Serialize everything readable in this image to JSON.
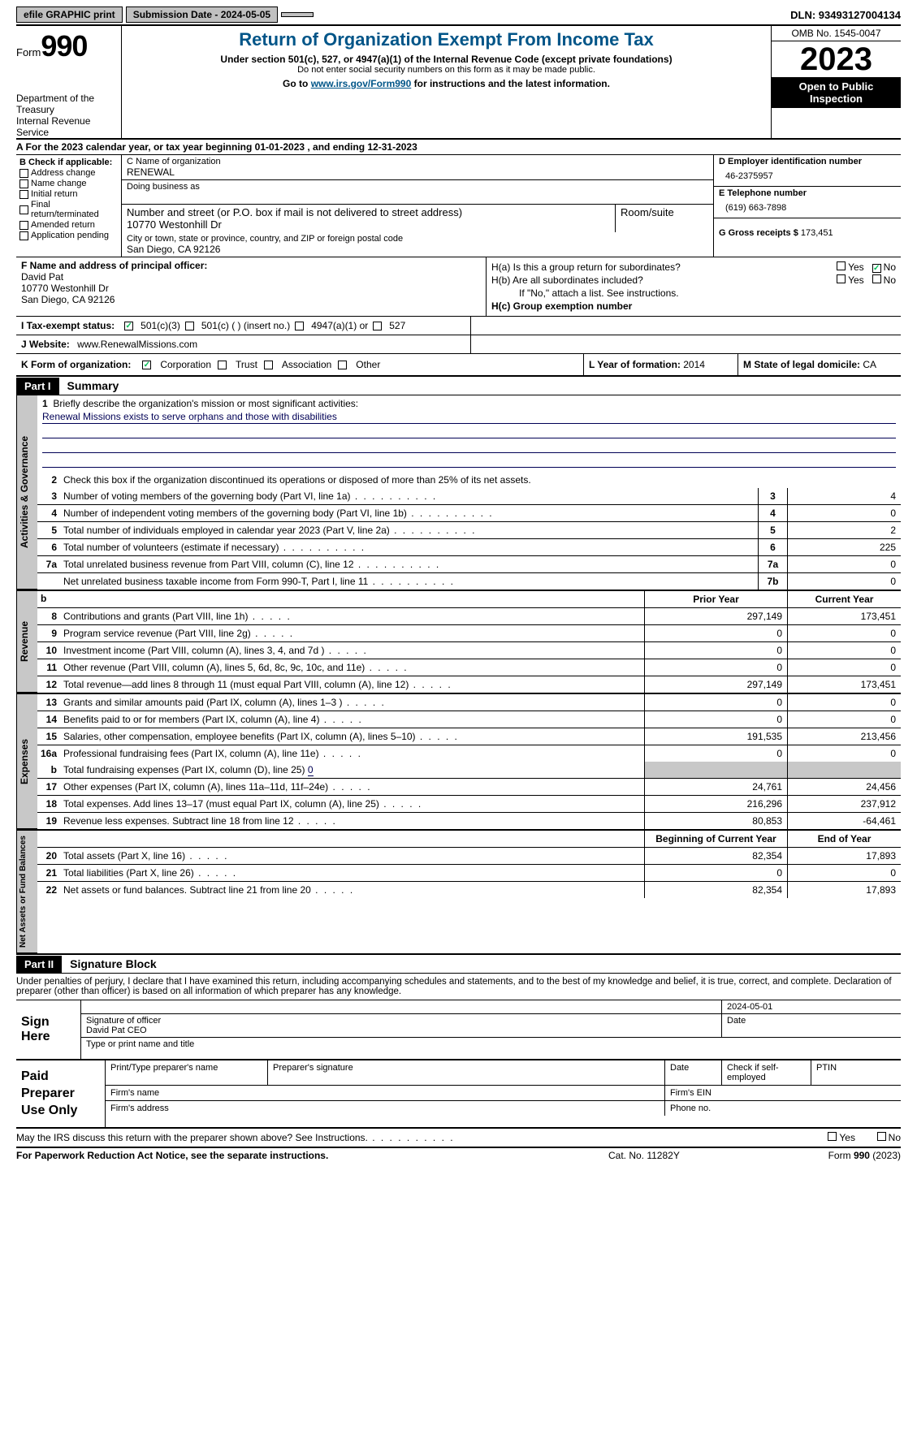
{
  "top": {
    "efile": "efile GRAPHIC print",
    "submission": "Submission Date - 2024-05-05",
    "dln": "DLN: 93493127004134"
  },
  "header": {
    "form_word": "Form",
    "form_no": "990",
    "title": "Return of Organization Exempt From Income Tax",
    "sub1": "Under section 501(c), 527, or 4947(a)(1) of the Internal Revenue Code (except private foundations)",
    "sub2": "Do not enter social security numbers on this form as it may be made public.",
    "goto": "Go to ",
    "link": "www.irs.gov/Form990",
    "goto2": " for instructions and the latest information.",
    "dept1": "Department of the Treasury",
    "dept2": "Internal Revenue Service",
    "omb": "OMB No. 1545-0047",
    "year": "2023",
    "open": "Open to Public Inspection"
  },
  "lineA": "A   For the 2023 calendar year, or tax year beginning 01-01-2023   , and ending 12-31-2023",
  "boxB": {
    "hd": "B Check if applicable:",
    "items": [
      "Address change",
      "Name change",
      "Initial return",
      "Final return/terminated",
      "Amended return",
      "Application pending"
    ]
  },
  "boxC": {
    "name_lbl": "C Name of organization",
    "name": "RENEWAL",
    "dba_lbl": "Doing business as",
    "addr_lbl": "Number and street (or P.O. box if mail is not delivered to street address)",
    "addr": "10770 Westonhill Dr",
    "room_lbl": "Room/suite",
    "city_lbl": "City or town, state or province, country, and ZIP or foreign postal code",
    "city": "San Diego, CA  92126"
  },
  "boxD": {
    "ein_lbl": "D Employer identification number",
    "ein": "46-2375957",
    "tel_lbl": "E Telephone number",
    "tel": "(619) 663-7898",
    "gross_lbl": "G Gross receipts $ ",
    "gross": "173,451"
  },
  "boxF": {
    "lbl": "F  Name and address of principal officer:",
    "name": "David Pat",
    "addr1": "10770 Westonhill Dr",
    "addr2": "San Diego, CA  92126"
  },
  "boxH": {
    "a": "H(a)  Is this a group return for subordinates?",
    "b": "H(b)  Are all subordinates included?",
    "note": "If \"No,\" attach a list. See instructions.",
    "c": "H(c)  Group exemption number ",
    "yes": "Yes",
    "no": "No"
  },
  "rowI": {
    "lbl": "I   Tax-exempt status:",
    "o1": "501(c)(3)",
    "o2": "501(c) (  ) (insert no.)",
    "o3": "4947(a)(1) or",
    "o4": "527"
  },
  "rowJ": {
    "lbl": "J   Website:",
    "val": " www.RenewalMissions.com"
  },
  "rowK": {
    "lbl": "K Form of organization:",
    "o1": "Corporation",
    "o2": "Trust",
    "o3": "Association",
    "o4": "Other"
  },
  "rowL": {
    "lbl": "L Year of formation: ",
    "val": "2014"
  },
  "rowM": {
    "lbl": "M State of legal domicile: ",
    "val": "CA"
  },
  "part1": {
    "hd": "Part I",
    "title": "Summary"
  },
  "summary": {
    "g1": {
      "tab": "Activities & Governance",
      "l1": "Briefly describe the organization's mission or most significant activities:",
      "mission": "Renewal Missions exists to serve orphans and those with disabilities",
      "l2": "Check this box           if the organization discontinued its operations or disposed of more than 25% of its net assets.",
      "rows": [
        {
          "n": "3",
          "t": "Number of voting members of the governing body (Part VI, line 1a)",
          "c": "3",
          "v": "4"
        },
        {
          "n": "4",
          "t": "Number of independent voting members of the governing body (Part VI, line 1b)",
          "c": "4",
          "v": "0"
        },
        {
          "n": "5",
          "t": "Total number of individuals employed in calendar year 2023 (Part V, line 2a)",
          "c": "5",
          "v": "2"
        },
        {
          "n": "6",
          "t": "Total number of volunteers (estimate if necessary)",
          "c": "6",
          "v": "225"
        },
        {
          "n": "7a",
          "t": "Total unrelated business revenue from Part VIII, column (C), line 12",
          "c": "7a",
          "v": "0"
        },
        {
          "n": "",
          "t": "Net unrelated business taxable income from Form 990-T, Part I, line 11",
          "c": "7b",
          "v": "0"
        }
      ]
    },
    "hd_b": "b",
    "hd_prior": "Prior Year",
    "hd_current": "Current Year",
    "g2": {
      "tab": "Revenue",
      "rows": [
        {
          "n": "8",
          "t": "Contributions and grants (Part VIII, line 1h)",
          "p": "297,149",
          "c": "173,451"
        },
        {
          "n": "9",
          "t": "Program service revenue (Part VIII, line 2g)",
          "p": "0",
          "c": "0"
        },
        {
          "n": "10",
          "t": "Investment income (Part VIII, column (A), lines 3, 4, and 7d )",
          "p": "0",
          "c": "0"
        },
        {
          "n": "11",
          "t": "Other revenue (Part VIII, column (A), lines 5, 6d, 8c, 9c, 10c, and 11e)",
          "p": "0",
          "c": "0"
        },
        {
          "n": "12",
          "t": "Total revenue—add lines 8 through 11 (must equal Part VIII, column (A), line 12)",
          "p": "297,149",
          "c": "173,451"
        }
      ]
    },
    "g3": {
      "tab": "Expenses",
      "rows": [
        {
          "n": "13",
          "t": "Grants and similar amounts paid (Part IX, column (A), lines 1–3 )",
          "p": "0",
          "c": "0"
        },
        {
          "n": "14",
          "t": "Benefits paid to or for members (Part IX, column (A), line 4)",
          "p": "0",
          "c": "0"
        },
        {
          "n": "15",
          "t": "Salaries, other compensation, employee benefits (Part IX, column (A), lines 5–10)",
          "p": "191,535",
          "c": "213,456"
        },
        {
          "n": "16a",
          "t": "Professional fundraising fees (Part IX, column (A), line 11e)",
          "p": "0",
          "c": "0"
        }
      ],
      "l16b_n": "b",
      "l16b": "Total fundraising expenses (Part IX, column (D), line 25) ",
      "l16b_v": "0",
      "rows2": [
        {
          "n": "17",
          "t": "Other expenses (Part IX, column (A), lines 11a–11d, 11f–24e)",
          "p": "24,761",
          "c": "24,456"
        },
        {
          "n": "18",
          "t": "Total expenses. Add lines 13–17 (must equal Part IX, column (A), line 25)",
          "p": "216,296",
          "c": "237,912"
        },
        {
          "n": "19",
          "t": "Revenue less expenses. Subtract line 18 from line 12",
          "p": "80,853",
          "c": "-64,461"
        }
      ]
    },
    "hd_beg": "Beginning of Current Year",
    "hd_end": "End of Year",
    "g4": {
      "tab": "Net Assets or Fund Balances",
      "rows": [
        {
          "n": "20",
          "t": "Total assets (Part X, line 16)",
          "p": "82,354",
          "c": "17,893"
        },
        {
          "n": "21",
          "t": "Total liabilities (Part X, line 26)",
          "p": "0",
          "c": "0"
        },
        {
          "n": "22",
          "t": "Net assets or fund balances. Subtract line 21 from line 20",
          "p": "82,354",
          "c": "17,893"
        }
      ]
    }
  },
  "part2": {
    "hd": "Part II",
    "title": "Signature Block"
  },
  "perjury": "Under penalties of perjury, I declare that I have examined this return, including accompanying schedules and statements, and to the best of my knowledge and belief, it is true, correct, and complete. Declaration of preparer (other than officer) is based on all information of which preparer has any knowledge.",
  "sign": {
    "lbl": "Sign Here",
    "date": "2024-05-01",
    "sig_lbl": "Signature of officer",
    "name": "David Pat CEO",
    "type_lbl": "Type or print name and title",
    "date_lbl": "Date"
  },
  "prep": {
    "lbl": "Paid Preparer Use Only",
    "r1": [
      "Print/Type preparer's name",
      "Preparer's signature",
      "Date",
      "Check          if self-employed",
      "PTIN"
    ],
    "r2l": "Firm's name",
    "r2r": "Firm's EIN",
    "r3l": "Firm's address",
    "r3r": "Phone no."
  },
  "discuss": {
    "txt": "May the IRS discuss this return with the preparer shown above? See Instructions.",
    "yes": "Yes",
    "no": "No"
  },
  "footer": {
    "f1": "For Paperwork Reduction Act Notice, see the separate instructions.",
    "f2": "Cat. No. 11282Y",
    "f3a": "Form ",
    "f3b": "990",
    "f3c": " (2023)"
  }
}
